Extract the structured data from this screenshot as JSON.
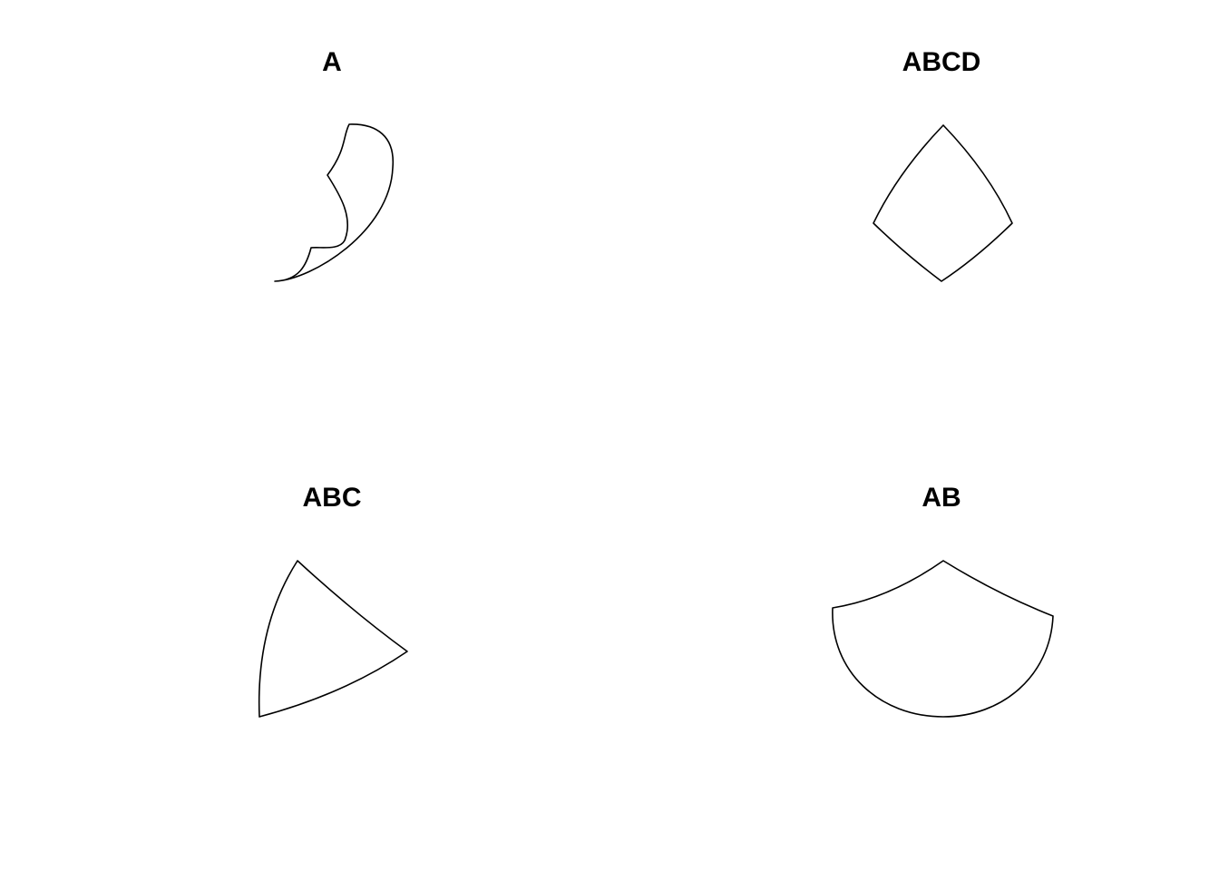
{
  "figure": {
    "background_color": "#ffffff",
    "stroke_color": "#000000",
    "panels": [
      {
        "id": "top-left",
        "title": "A"
      },
      {
        "id": "top-right",
        "title": "ABCD"
      },
      {
        "id": "bottom-left",
        "title": "ABC"
      },
      {
        "id": "bottom-right",
        "title": "AB"
      }
    ]
  }
}
